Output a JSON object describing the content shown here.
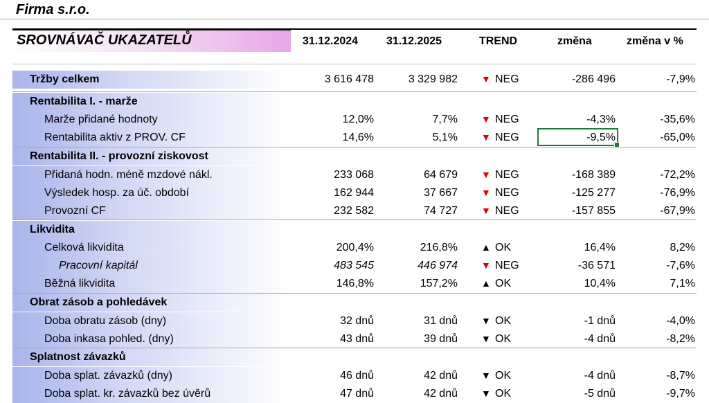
{
  "company": "Firma s.r.o.",
  "title": "SROVNÁVAČ UKAZATELŮ",
  "columns": {
    "y2024": "31.12.2024",
    "y2025": "31.12.2025",
    "trend": "TREND",
    "change": "změna",
    "change_pct": "změna v %"
  },
  "rows": [
    {
      "label": "Tržby celkem",
      "v2024": "3 616 478",
      "v2025": "3 329 982",
      "arrow": "▼",
      "trend": "NEG",
      "change": "-286 496",
      "pct": "-7,9%"
    },
    {
      "label": "Rentabilita I. - marže"
    },
    {
      "label": "Marže přidané hodnoty",
      "v2024": "12,0%",
      "v2025": "7,7%",
      "arrow": "▼",
      "trend": "NEG",
      "change": "-4,3%",
      "pct": "-35,6%"
    },
    {
      "label": "Rentabilita aktiv z PROV. CF",
      "v2024": "14,6%",
      "v2025": "5,1%",
      "arrow": "▼",
      "trend": "NEG",
      "change": "-9,5%",
      "pct": "-65,0%"
    },
    {
      "label": "Rentabilita II. - provozní ziskovost"
    },
    {
      "label": "Přidaná hodn. méně mzdové nákl.",
      "v2024": "233 068",
      "v2025": "64 679",
      "arrow": "▼",
      "trend": "NEG",
      "change": "-168 389",
      "pct": "-72,2%"
    },
    {
      "label": "Výsledek hosp. za úč. období",
      "v2024": "162 944",
      "v2025": "37 667",
      "arrow": "▼",
      "trend": "NEG",
      "change": "-125 277",
      "pct": "-76,9%"
    },
    {
      "label": "Provozní CF",
      "v2024": "232 582",
      "v2025": "74 727",
      "arrow": "▼",
      "trend": "NEG",
      "change": "-157 855",
      "pct": "-67,9%"
    },
    {
      "label": "Likvidita"
    },
    {
      "label": "Celková likvidita",
      "v2024": "200,4%",
      "v2025": "216,8%",
      "arrow": "▲",
      "trend": "OK",
      "change": "16,4%",
      "pct": "8,2%"
    },
    {
      "label": "Pracovní kapitál",
      "v2024": "483 545",
      "v2025": "446 974",
      "arrow": "▼",
      "trend": "NEG",
      "change": "-36 571",
      "pct": "-7,6%"
    },
    {
      "label": "Běžná likvidita",
      "v2024": "146,8%",
      "v2025": "157,2%",
      "arrow": "▲",
      "trend": "OK",
      "change": "10,4%",
      "pct": "7,1%"
    },
    {
      "label": "Obrat zásob a pohledávek"
    },
    {
      "label": "Doba obratu zásob (dny)",
      "v2024": "32 dnů",
      "v2025": "31 dnů",
      "arrow": "▼",
      "trend": "OK",
      "change": "-1 dnů",
      "pct": "-4,0%"
    },
    {
      "label": "Doba inkasa pohled. (dny)",
      "v2024": "43 dnů",
      "v2025": "39 dnů",
      "arrow": "▼",
      "trend": "OK",
      "change": "-4 dnů",
      "pct": "-8,2%"
    },
    {
      "label": "Splatnost závazků"
    },
    {
      "label": "Doba splat. závazků (dny)",
      "v2024": "46 dnů",
      "v2025": "42 dnů",
      "arrow": "▼",
      "trend": "OK",
      "change": "-4 dnů",
      "pct": "-8,7%"
    },
    {
      "label": "Doba splat. kr. závazků bez úvěrů",
      "v2024": "47 dnů",
      "v2025": "42 dnů",
      "arrow": "▼",
      "trend": "OK",
      "change": "-5 dnů",
      "pct": "-9,7%"
    }
  ],
  "colors": {
    "neg_arrow": "#e00000",
    "selection": "#1f7a3a"
  }
}
